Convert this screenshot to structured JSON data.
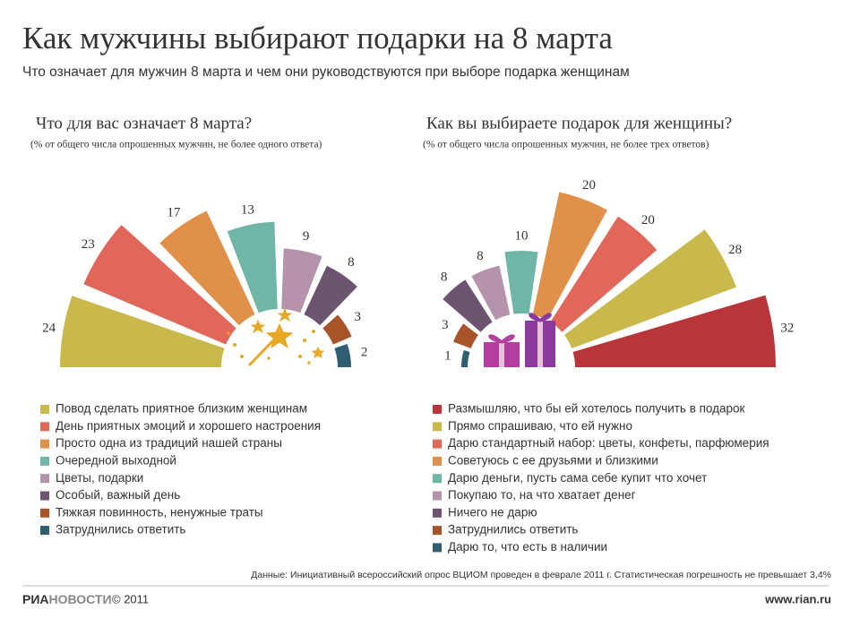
{
  "header": {
    "title": "Как мужчины выбирают подарки на 8 марта",
    "subtitle": "Что означает для мужчин 8 марта и чем они руководствуются при выборе подарка женщинам"
  },
  "chart_data": [
    {
      "type": "radial-bar",
      "title": "Что для вас означает 8 марта?",
      "subtitle": "(% от общего числа опрошенных мужчин, не более одного ответа)",
      "direction": "clockwise",
      "categories": [
        "Повод сделать приятное близким женщинам",
        "День приятных эмоций и хорошего настроения",
        "Просто одна из традиций нашей страны",
        "Очередной выходной",
        "Цветы, подарки",
        "Особый, важный день",
        "Тяжкая повинность, ненужные траты",
        "Затруднились ответить"
      ],
      "values": [
        24,
        23,
        17,
        13,
        9,
        8,
        3,
        2
      ],
      "colors": [
        "#c9b94b",
        "#e0675a",
        "#e09049",
        "#6fb6a6",
        "#b593aa",
        "#6d5470",
        "#a8532a",
        "#2f5e72"
      ]
    },
    {
      "type": "radial-bar",
      "title": "Как вы выбираете подарок для женщины?",
      "subtitle": "(% от общего числа опрошенных мужчин, не более трех ответов)",
      "direction": "counterclockwise",
      "categories": [
        "Размышляю, что бы ей хотелось получить в подарок",
        "Прямо спрашиваю, что ей нужно",
        "Дарю стандартный набор: цветы, конфеты, парфюмерия",
        "Советуюсь с ее друзьями и близкими",
        "Дарю деньги, пусть сама себе купит что хочет",
        "Покупаю то, на что хватает денег",
        "Ничего не дарю",
        "Затруднились ответить",
        "Дарю то, что есть в наличии"
      ],
      "values": [
        32,
        28,
        20,
        20,
        10,
        8,
        8,
        3,
        1
      ],
      "colors": [
        "#b8363a",
        "#c9b94b",
        "#e0675a",
        "#e09049",
        "#6fb6a6",
        "#b593aa",
        "#6d5470",
        "#a8532a",
        "#2f5e72"
      ]
    }
  ],
  "footer": {
    "source": "Данные: Инициативный всероссийский опрос ВЦИОМ проведен в феврале 2011 г. Статистическая погрешность не превышает 3,4%",
    "logo_a": "РИА",
    "logo_b": "НОВОСТИ",
    "copyright": "© 2011",
    "url": "www.rian.ru"
  }
}
